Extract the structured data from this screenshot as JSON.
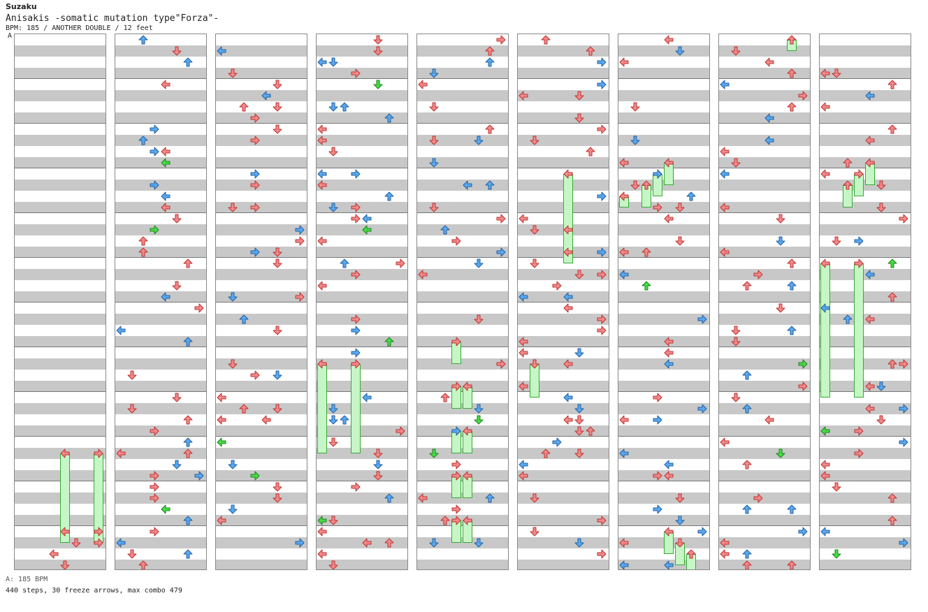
{
  "header": {
    "artist": "Suzaku",
    "title": "Anisakis -somatic mutation type\"Forza\"-",
    "meta": "BPM: 185 / ANOTHER DOUBLE / 12 feet",
    "marker": "A"
  },
  "footer": {
    "bpm_note": "A: 185 BPM",
    "stats": "440 steps, 30 freeze arrows, max combo 479"
  },
  "colors": {
    "red_arrow": "#f08a8a",
    "blue_arrow": "#5aa8f0",
    "green_arrow": "#44dd44",
    "freeze_fill": "#c6f6c6",
    "stripe": "#c8c8c8"
  },
  "icons": [
    "arrow-left-icon",
    "arrow-down-icon",
    "arrow-up-icon",
    "arrow-right-icon",
    "freeze-arrow-icon"
  ]
}
